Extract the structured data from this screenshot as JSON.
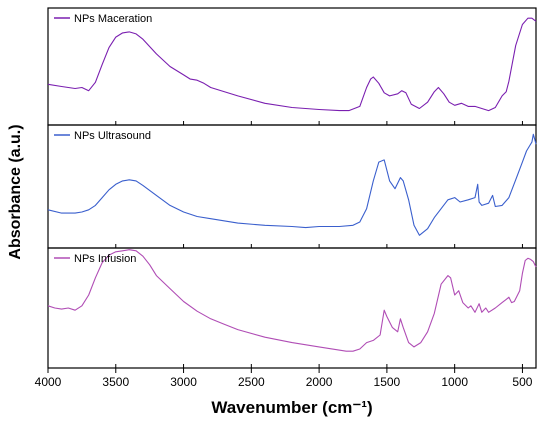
{
  "chart_data": {
    "type": "line",
    "xlabel": "Wavenumber (cm⁻¹)",
    "ylabel": "Absorbance (a.u.)",
    "xlim": [
      4000,
      400
    ],
    "x_ticks": [
      "4000",
      "3500",
      "3000",
      "2500",
      "2000",
      "1500",
      "1000",
      "500"
    ],
    "panels": [
      {
        "name": "NPs Maceration",
        "color": "#7a1fb0",
        "x": [
          4000,
          3900,
          3800,
          3750,
          3700,
          3650,
          3600,
          3550,
          3500,
          3450,
          3400,
          3350,
          3300,
          3200,
          3100,
          3000,
          2950,
          2900,
          2850,
          2800,
          2600,
          2400,
          2200,
          2000,
          1850,
          1780,
          1700,
          1650,
          1620,
          1600,
          1560,
          1520,
          1480,
          1420,
          1390,
          1360,
          1320,
          1260,
          1200,
          1150,
          1120,
          1080,
          1040,
          1000,
          950,
          900,
          850,
          800,
          750,
          700,
          650,
          620,
          600,
          550,
          500,
          460,
          430,
          400
        ],
        "y": [
          0.33,
          0.31,
          0.29,
          0.3,
          0.27,
          0.35,
          0.52,
          0.68,
          0.78,
          0.82,
          0.83,
          0.81,
          0.76,
          0.62,
          0.5,
          0.42,
          0.38,
          0.37,
          0.34,
          0.3,
          0.22,
          0.15,
          0.11,
          0.09,
          0.08,
          0.08,
          0.12,
          0.3,
          0.38,
          0.4,
          0.34,
          0.25,
          0.22,
          0.24,
          0.27,
          0.25,
          0.14,
          0.1,
          0.16,
          0.26,
          0.3,
          0.24,
          0.16,
          0.13,
          0.15,
          0.12,
          0.12,
          0.1,
          0.08,
          0.11,
          0.22,
          0.26,
          0.36,
          0.7,
          0.9,
          0.96,
          0.96,
          0.93
        ]
      },
      {
        "name": "NPs Ultrasound",
        "color": "#3a5fcd",
        "x": [
          4000,
          3900,
          3800,
          3750,
          3700,
          3650,
          3600,
          3550,
          3500,
          3450,
          3400,
          3350,
          3300,
          3200,
          3100,
          3000,
          2900,
          2800,
          2600,
          2400,
          2200,
          2100,
          2000,
          1850,
          1750,
          1700,
          1650,
          1600,
          1560,
          1520,
          1480,
          1440,
          1400,
          1380,
          1340,
          1300,
          1260,
          1200,
          1150,
          1100,
          1050,
          1000,
          960,
          900,
          850,
          830,
          820,
          800,
          750,
          720,
          700,
          650,
          600,
          550,
          500,
          470,
          450,
          430,
          420,
          410,
          400
        ],
        "y": [
          0.29,
          0.26,
          0.26,
          0.27,
          0.29,
          0.33,
          0.4,
          0.47,
          0.52,
          0.55,
          0.56,
          0.55,
          0.51,
          0.42,
          0.33,
          0.27,
          0.23,
          0.21,
          0.17,
          0.15,
          0.14,
          0.13,
          0.14,
          0.14,
          0.15,
          0.18,
          0.3,
          0.55,
          0.72,
          0.74,
          0.55,
          0.48,
          0.58,
          0.55,
          0.38,
          0.15,
          0.06,
          0.12,
          0.22,
          0.3,
          0.38,
          0.4,
          0.36,
          0.38,
          0.4,
          0.52,
          0.36,
          0.33,
          0.35,
          0.42,
          0.32,
          0.33,
          0.4,
          0.56,
          0.72,
          0.82,
          0.86,
          0.9,
          0.97,
          0.93,
          0.88
        ]
      },
      {
        "name": "NPs Infusion",
        "color": "#b04db5",
        "x": [
          4000,
          3950,
          3900,
          3850,
          3800,
          3750,
          3700,
          3650,
          3600,
          3550,
          3500,
          3450,
          3400,
          3350,
          3300,
          3250,
          3200,
          3100,
          3000,
          2900,
          2800,
          2700,
          2600,
          2400,
          2200,
          2000,
          1800,
          1750,
          1700,
          1650,
          1600,
          1550,
          1520,
          1500,
          1460,
          1420,
          1400,
          1380,
          1340,
          1300,
          1250,
          1200,
          1150,
          1100,
          1050,
          1030,
          1000,
          970,
          940,
          900,
          880,
          850,
          820,
          800,
          770,
          750,
          700,
          650,
          620,
          600,
          580,
          560,
          520,
          500,
          480,
          460,
          440,
          420,
          400
        ],
        "y": [
          0.52,
          0.5,
          0.49,
          0.5,
          0.48,
          0.52,
          0.62,
          0.78,
          0.92,
          0.99,
          1.02,
          1.03,
          1.04,
          1.03,
          0.98,
          0.9,
          0.8,
          0.68,
          0.56,
          0.47,
          0.4,
          0.35,
          0.3,
          0.23,
          0.18,
          0.14,
          0.1,
          0.1,
          0.12,
          0.18,
          0.2,
          0.25,
          0.48,
          0.42,
          0.32,
          0.28,
          0.4,
          0.32,
          0.18,
          0.14,
          0.18,
          0.28,
          0.45,
          0.72,
          0.8,
          0.78,
          0.62,
          0.66,
          0.55,
          0.5,
          0.52,
          0.46,
          0.54,
          0.46,
          0.5,
          0.46,
          0.5,
          0.55,
          0.58,
          0.6,
          0.55,
          0.56,
          0.66,
          0.82,
          0.94,
          0.96,
          0.95,
          0.93,
          0.88
        ]
      }
    ],
    "grid": false,
    "legend_placement": "top-left of each panel"
  }
}
